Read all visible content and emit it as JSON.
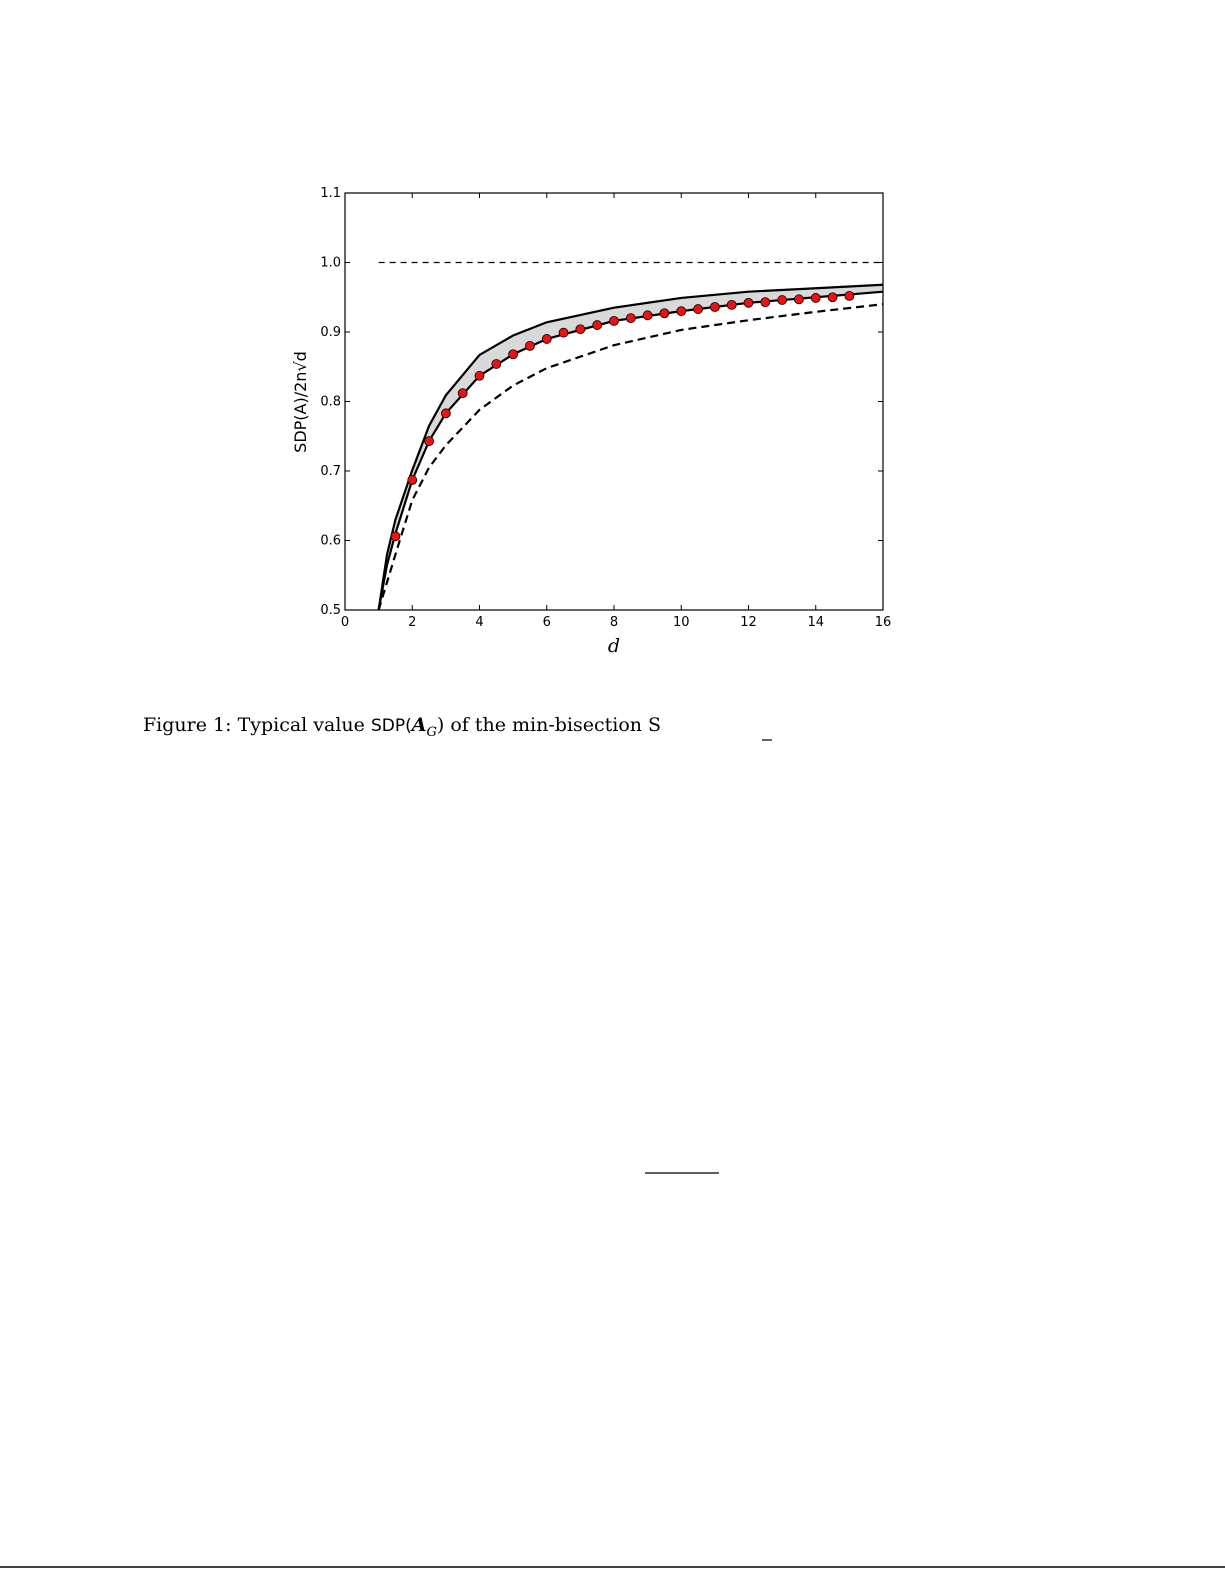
{
  "chart_data": {
    "type": "line",
    "xlabel": "d",
    "ylabel": "SDP(A)/2n√d",
    "xlim": [
      0,
      16
    ],
    "ylim": [
      0.5,
      1.1
    ],
    "xticks": [
      0,
      2,
      4,
      6,
      8,
      10,
      12,
      14,
      16
    ],
    "yticks": [
      0.5,
      0.6,
      0.7,
      0.8,
      0.9,
      {
        "value": 1,
        "label": "1.0"
      },
      1.1
    ],
    "band": {
      "between": [
        0,
        1
      ],
      "color": "#d9d9d9"
    },
    "series": [
      {
        "style": "solid",
        "color": "#000000",
        "x": [
          1,
          1.25,
          1.5,
          2,
          2.5,
          3,
          4,
          5,
          6,
          8,
          10,
          12,
          14,
          16
        ],
        "values": [
          0.5,
          0.58,
          0.63,
          0.701,
          0.765,
          0.809,
          0.867,
          0.895,
          0.914,
          0.935,
          0.949,
          0.958,
          0.963,
          0.968
        ]
      },
      {
        "style": "solid",
        "color": "#000000",
        "x": [
          1,
          1.25,
          1.5,
          2,
          2.5,
          3,
          4,
          5,
          6,
          8,
          10,
          12,
          14,
          16
        ],
        "values": [
          0.5,
          0.565,
          0.61,
          0.687,
          0.743,
          0.783,
          0.837,
          0.868,
          0.89,
          0.916,
          0.93,
          0.942,
          0.95,
          0.958
        ]
      },
      {
        "style": "dashed",
        "color": "#000000",
        "x": [
          1,
          1.25,
          1.5,
          2,
          2.5,
          3,
          4,
          5,
          6,
          8,
          10,
          12,
          14,
          16
        ],
        "values": [
          0.5,
          0.54,
          0.58,
          0.658,
          0.705,
          0.737,
          0.788,
          0.823,
          0.848,
          0.881,
          0.903,
          0.917,
          0.929,
          0.94
        ]
      },
      {
        "style": "dashed",
        "color": "#000000",
        "x": [
          1,
          16
        ],
        "values": [
          1,
          1
        ]
      },
      {
        "style": "markers",
        "color": "#ee1111",
        "x": [
          1.5,
          2,
          2.5,
          3,
          3.5,
          4,
          4.5,
          5,
          5.5,
          6,
          6.5,
          7,
          7.5,
          8,
          8.5,
          9,
          9.5,
          10,
          10.5,
          11,
          11.5,
          12,
          12.5,
          13,
          13.5,
          14,
          14.5,
          15
        ],
        "values": [
          0.606,
          0.687,
          0.743,
          0.783,
          0.812,
          0.837,
          0.854,
          0.868,
          0.88,
          0.89,
          0.899,
          0.904,
          0.91,
          0.916,
          0.92,
          0.924,
          0.927,
          0.93,
          0.933,
          0.936,
          0.939,
          0.942,
          0.943,
          0.946,
          0.947,
          0.949,
          0.95,
          0.952
        ]
      }
    ]
  },
  "caption": {
    "label": "Figure 1:",
    "before": "Typical value",
    "sdp": "SDP(",
    "matrix": "A",
    "sub": "G",
    "after": ") of the min-bisection S"
  }
}
